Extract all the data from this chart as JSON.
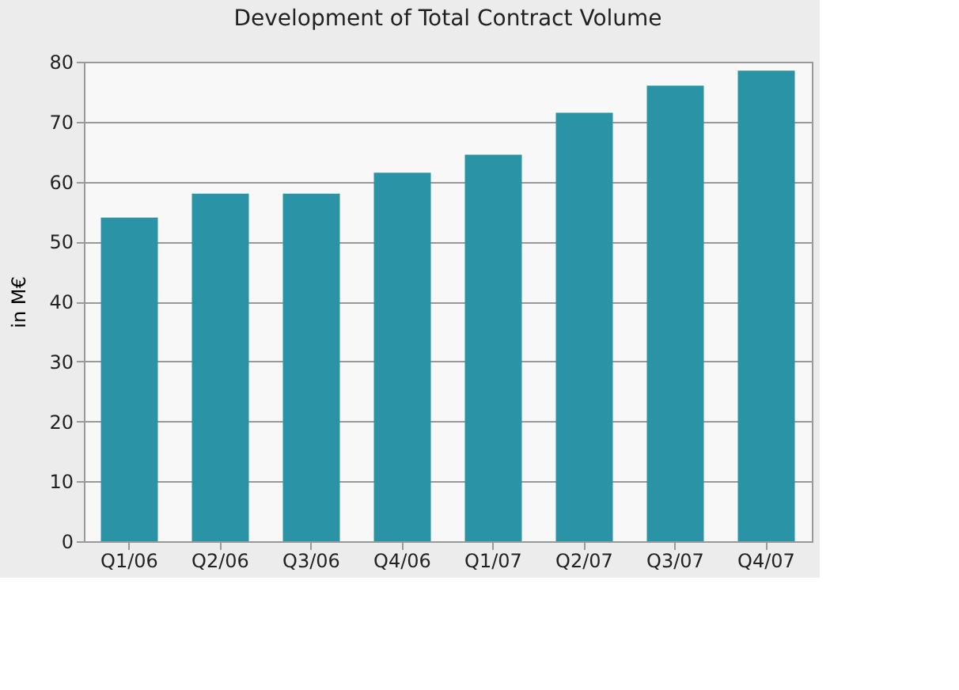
{
  "chart_data": {
    "type": "bar",
    "title": "Development of Total Contract Volume",
    "ylabel": "in M€",
    "categories": [
      "Q1/06",
      "Q2/06",
      "Q3/06",
      "Q4/06",
      "Q1/07",
      "Q2/07",
      "Q3/07",
      "Q4/07"
    ],
    "values": [
      54,
      58,
      58,
      61.5,
      64.5,
      71.5,
      76,
      78.5
    ],
    "color": "#2a94a6",
    "ylim": [
      0,
      80
    ],
    "yticks": [
      0,
      10,
      20,
      30,
      40,
      50,
      60,
      70,
      80
    ],
    "grid": "y"
  }
}
